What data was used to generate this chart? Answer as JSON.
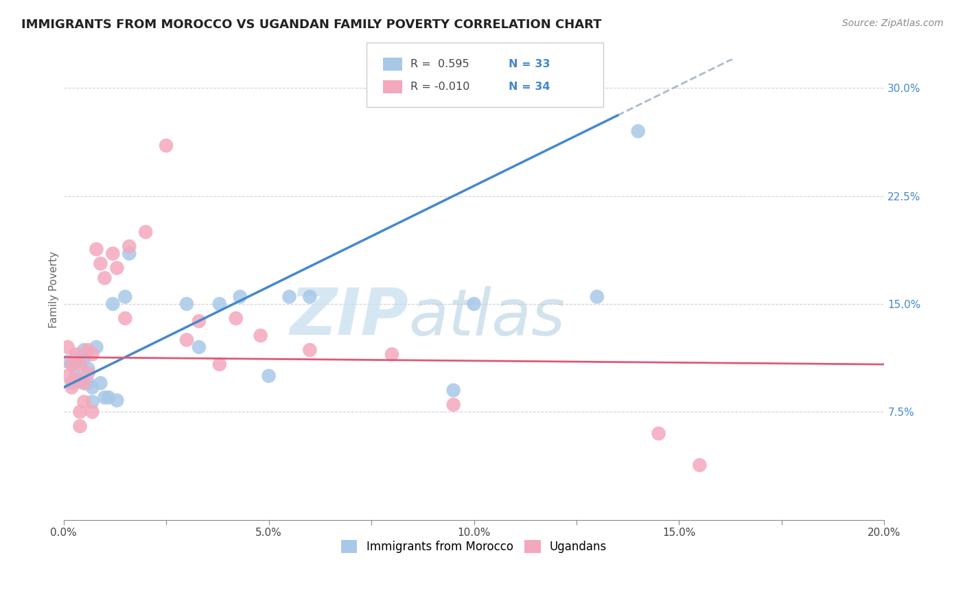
{
  "title": "IMMIGRANTS FROM MOROCCO VS UGANDAN FAMILY POVERTY CORRELATION CHART",
  "source": "Source: ZipAtlas.com",
  "ylabel": "Family Poverty",
  "xlim": [
    0.0,
    0.2
  ],
  "ylim": [
    0.0,
    0.32
  ],
  "xtick_labels": [
    "0.0%",
    "",
    "5.0%",
    "",
    "10.0%",
    "",
    "15.0%",
    "",
    "20.0%"
  ],
  "xtick_values": [
    0.0,
    0.025,
    0.05,
    0.075,
    0.1,
    0.125,
    0.15,
    0.175,
    0.2
  ],
  "ytick_labels": [
    "7.5%",
    "15.0%",
    "22.5%",
    "30.0%"
  ],
  "ytick_values": [
    0.075,
    0.15,
    0.225,
    0.3
  ],
  "morocco_color": "#a8c8e8",
  "ugandan_color": "#f4a8bc",
  "morocco_line_color": "#4488cc",
  "ugandan_line_color": "#e05878",
  "dashed_line_color": "#aabbcc",
  "watermark_zip": "ZIP",
  "watermark_atlas": "atlas",
  "legend_r_morocco": "R =  0.595",
  "legend_n_morocco": "N = 33",
  "legend_r_ugandan": "R = -0.010",
  "legend_n_ugandan": "N = 34",
  "legend_label_morocco": "Immigrants from Morocco",
  "legend_label_ugandan": "Ugandans",
  "morocco_x": [
    0.001,
    0.002,
    0.002,
    0.003,
    0.003,
    0.004,
    0.004,
    0.005,
    0.005,
    0.005,
    0.006,
    0.006,
    0.007,
    0.007,
    0.008,
    0.009,
    0.01,
    0.011,
    0.012,
    0.013,
    0.015,
    0.016,
    0.03,
    0.033,
    0.038,
    0.043,
    0.05,
    0.055,
    0.06,
    0.095,
    0.1,
    0.13,
    0.14
  ],
  "morocco_y": [
    0.11,
    0.108,
    0.095,
    0.112,
    0.1,
    0.11,
    0.096,
    0.118,
    0.112,
    0.095,
    0.105,
    0.095,
    0.092,
    0.082,
    0.12,
    0.095,
    0.085,
    0.085,
    0.15,
    0.083,
    0.155,
    0.185,
    0.15,
    0.12,
    0.15,
    0.155,
    0.1,
    0.155,
    0.155,
    0.09,
    0.15,
    0.155,
    0.27
  ],
  "ugandan_x": [
    0.001,
    0.001,
    0.002,
    0.002,
    0.003,
    0.003,
    0.004,
    0.004,
    0.004,
    0.005,
    0.005,
    0.006,
    0.006,
    0.007,
    0.007,
    0.008,
    0.009,
    0.01,
    0.012,
    0.013,
    0.015,
    0.016,
    0.02,
    0.025,
    0.03,
    0.033,
    0.038,
    0.042,
    0.048,
    0.06,
    0.08,
    0.095,
    0.145,
    0.155
  ],
  "ugandan_y": [
    0.12,
    0.1,
    0.108,
    0.092,
    0.115,
    0.098,
    0.108,
    0.075,
    0.065,
    0.095,
    0.082,
    0.118,
    0.102,
    0.115,
    0.075,
    0.188,
    0.178,
    0.168,
    0.185,
    0.175,
    0.14,
    0.19,
    0.2,
    0.26,
    0.125,
    0.138,
    0.108,
    0.14,
    0.128,
    0.118,
    0.115,
    0.08,
    0.06,
    0.038
  ],
  "morocco_slope": 1.4,
  "morocco_intercept": 0.092,
  "morocco_line_start": 0.0,
  "morocco_line_solid_end": 0.135,
  "morocco_line_dashed_end": 0.2,
  "ugandan_slope": -0.025,
  "ugandan_intercept": 0.113
}
